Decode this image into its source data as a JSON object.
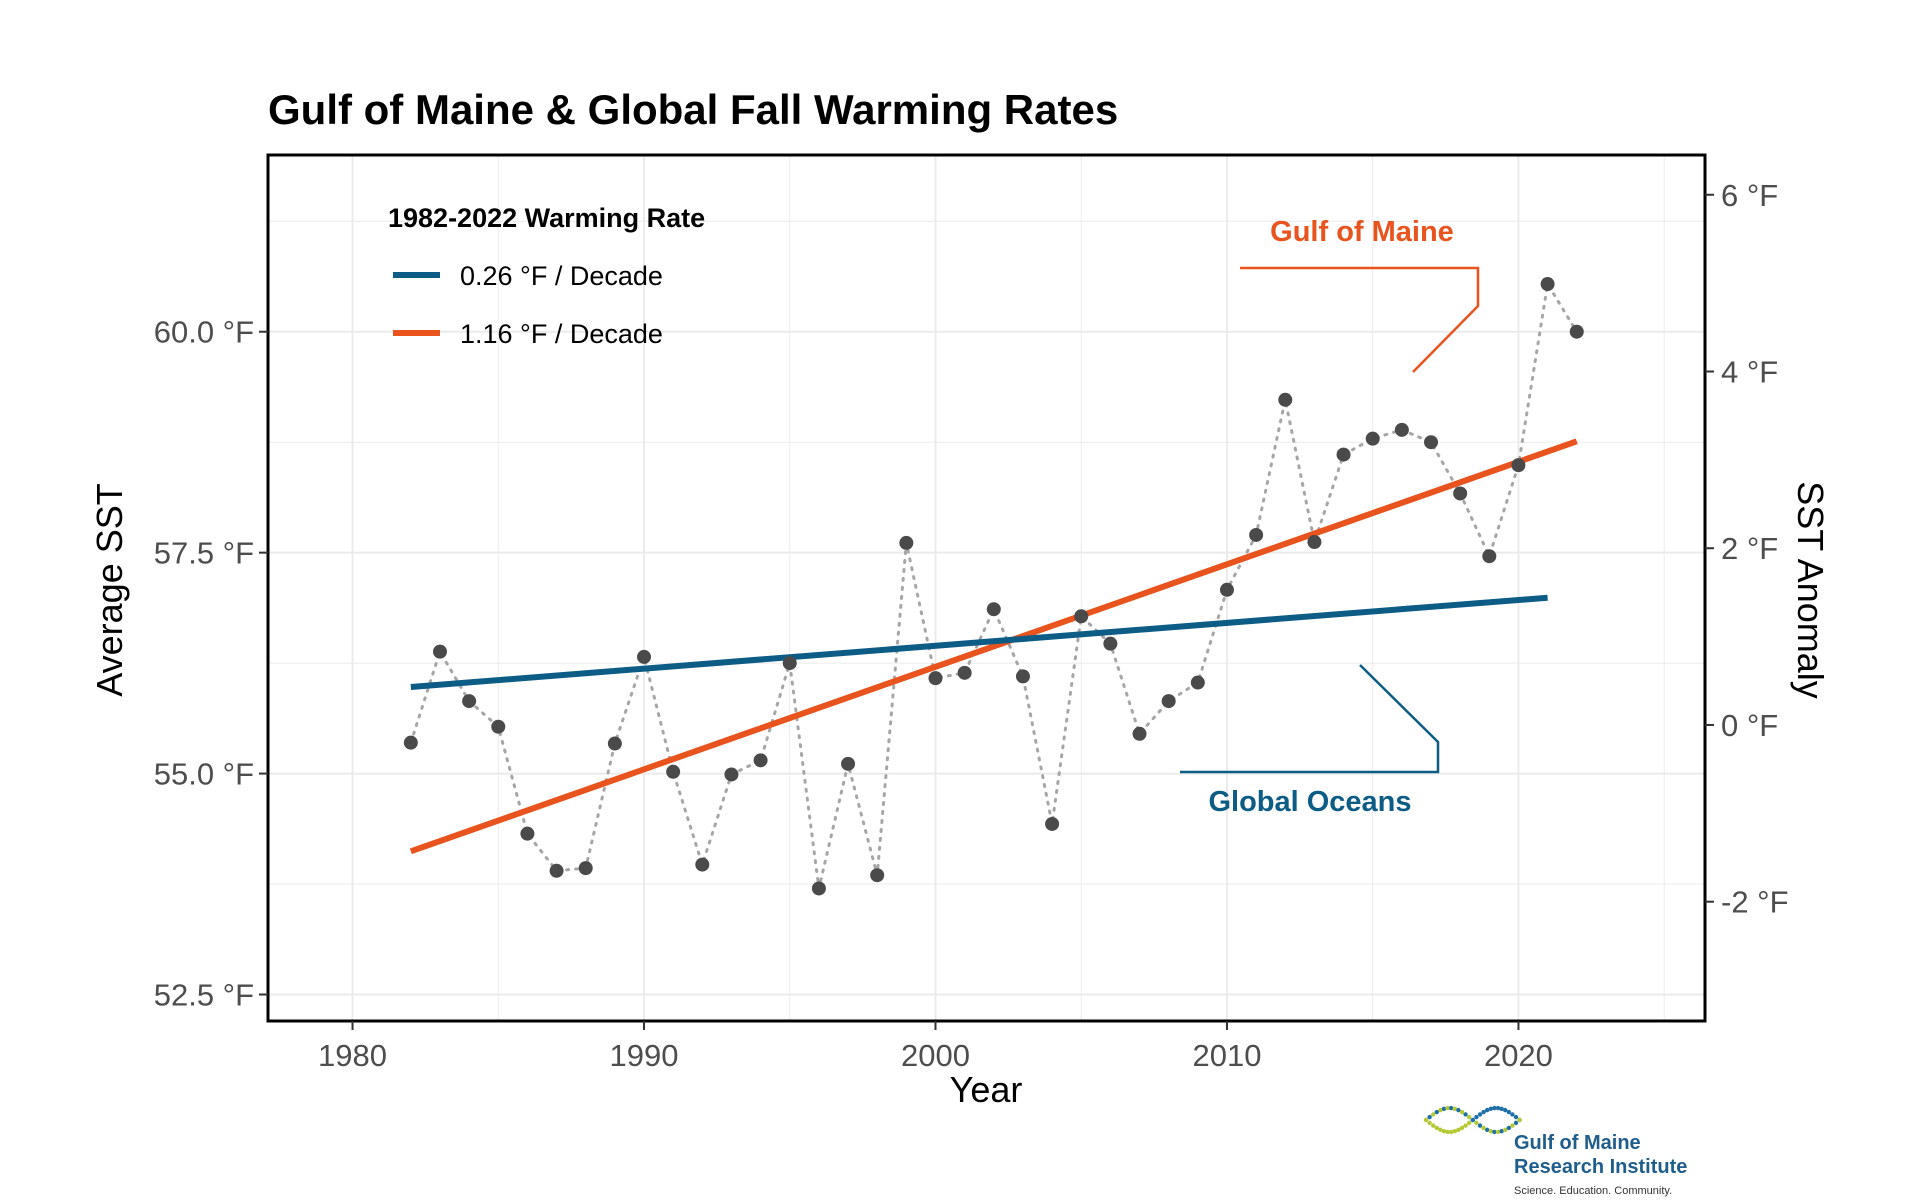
{
  "colors": {
    "gulf": "#e8531e",
    "global": "#0d5c86",
    "points": "#4a4a4a",
    "connector": "#a6a6a6",
    "grid": "#ebebeb",
    "logo_green": "#b5c934",
    "logo_blue": "#1f6fa8"
  },
  "chart_data": {
    "type": "scatter",
    "title": "Gulf of Maine & Global Fall Warming Rates",
    "xlabel": "Year",
    "ylabel": "Average SST",
    "y2label": "SST Anomaly",
    "xlim": [
      1977.1,
      2026.4
    ],
    "ylim": [
      52.2,
      62.0
    ],
    "x_ticks": [
      1980,
      1990,
      2000,
      2010,
      2020
    ],
    "x_tick_labels": [
      "1980",
      "1990",
      "2000",
      "2010",
      "2020"
    ],
    "y_ticks": [
      52.5,
      55.0,
      57.5,
      60.0
    ],
    "y_tick_labels": [
      "52.5 °F",
      "55.0 °F",
      "57.5 °F",
      "60.0 °F"
    ],
    "y2_ticks": [
      -2,
      0,
      2,
      4,
      6
    ],
    "y2_tick_labels": [
      "-2 °F",
      "0 °F",
      "2 °F",
      "4 °F",
      "6 °F"
    ],
    "y2_zero_at_y": 55.55,
    "grid": true,
    "legend": {
      "position": "top-left",
      "title": "1982-2022 Warming Rate",
      "items": [
        {
          "label": "0.26 °F / Decade",
          "series": "global"
        },
        {
          "label": "1.16 °F / Decade",
          "series": "gulf"
        }
      ]
    },
    "annotations": [
      {
        "text": "Gulf of Maine",
        "series": "gulf"
      },
      {
        "text": "Global Oceans",
        "series": "global"
      }
    ],
    "points": {
      "x": [
        1982,
        1983,
        1984,
        1985,
        1986,
        1987,
        1988,
        1989,
        1990,
        1991,
        1992,
        1993,
        1994,
        1995,
        1996,
        1997,
        1998,
        1999,
        2000,
        2001,
        2002,
        2003,
        2004,
        2005,
        2006,
        2007,
        2008,
        2009,
        2010,
        2011,
        2012,
        2013,
        2014,
        2015,
        2016,
        2017,
        2018,
        2019,
        2020,
        2021,
        2022
      ],
      "y": [
        55.35,
        56.38,
        55.82,
        55.53,
        54.32,
        53.9,
        53.93,
        55.34,
        56.32,
        55.02,
        53.97,
        54.99,
        55.15,
        56.25,
        53.7,
        55.11,
        53.85,
        57.61,
        56.08,
        56.14,
        56.86,
        56.1,
        54.43,
        56.78,
        56.47,
        55.45,
        55.82,
        56.03,
        57.08,
        57.7,
        59.23,
        57.62,
        58.61,
        58.79,
        58.89,
        58.75,
        58.17,
        57.46,
        58.49,
        60.54,
        60.0
      ]
    },
    "series": [
      {
        "id": "gulf",
        "x": [
          1982,
          2022
        ],
        "y": [
          54.12,
          58.76
        ]
      },
      {
        "id": "global",
        "x": [
          1982,
          2021
        ],
        "y": [
          55.98,
          56.99
        ]
      }
    ]
  },
  "logo": {
    "line1": "Gulf of Maine",
    "line2": "Research Institute",
    "tagline": "Science. Education. Community."
  }
}
